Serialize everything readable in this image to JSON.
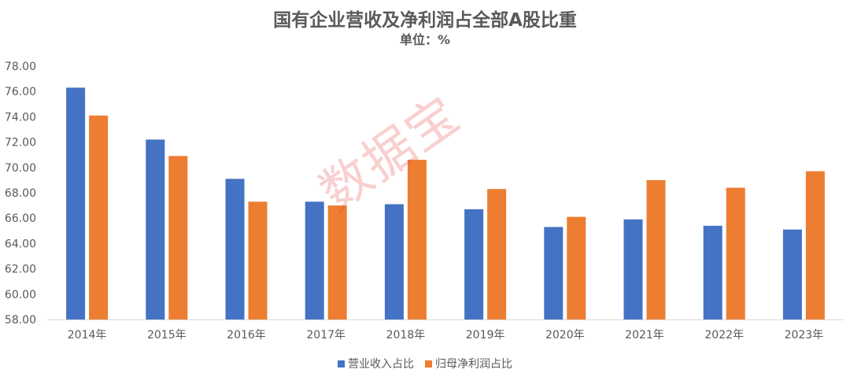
{
  "colors": {
    "series1": "#4472C4",
    "series2": "#ED7D31",
    "axis": "#d9d9d9",
    "text": "#595959",
    "watermark": "#E84646"
  },
  "chart_data": {
    "type": "bar",
    "title": "国有企业营收及净利润占全部A股比重",
    "subtitle": "单位：%",
    "categories": [
      "2014年",
      "2015年",
      "2016年",
      "2017年",
      "2018年",
      "2019年",
      "2020年",
      "2021年",
      "2022年",
      "2023年"
    ],
    "series": [
      {
        "name": "营业收入占比",
        "values": [
          76.3,
          72.2,
          69.1,
          67.3,
          67.1,
          66.7,
          65.3,
          65.9,
          65.4,
          65.1
        ]
      },
      {
        "name": "归母净利润占比",
        "values": [
          74.1,
          70.9,
          67.3,
          67.0,
          70.6,
          68.3,
          66.1,
          69.0,
          68.4,
          69.7
        ]
      }
    ],
    "ylim": [
      58,
      78
    ],
    "yticks": [
      "58.00",
      "60.00",
      "62.00",
      "64.00",
      "66.00",
      "68.00",
      "70.00",
      "72.00",
      "74.00",
      "76.00",
      "78.00"
    ],
    "grid": false,
    "legend": "bottom-center",
    "watermark": "数据宝"
  }
}
